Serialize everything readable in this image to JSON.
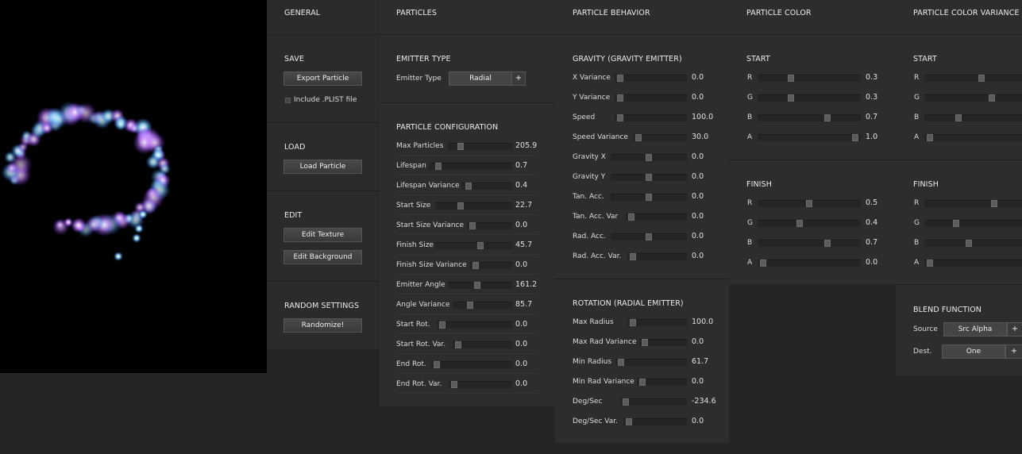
{
  "general": {
    "title": "GENERAL",
    "save": {
      "title": "SAVE",
      "export_label": "Export Particle",
      "include_plist_label": "Include .PLIST file"
    },
    "load": {
      "title": "LOAD",
      "load_label": "Load Particle"
    },
    "edit": {
      "title": "EDIT",
      "edit_texture_label": "Edit Texture",
      "edit_background_label": "Edit Background"
    },
    "random": {
      "title": "RANDOM SETTINGS",
      "randomize_label": "Randomize!"
    }
  },
  "particles": {
    "title": "PARTICLES",
    "emitter": {
      "title": "EMITTER TYPE",
      "label": "Emitter Type",
      "value": "Radial",
      "plus": "+"
    },
    "config": {
      "title": "PARTICLE CONFIGURATION",
      "rows": [
        {
          "label": "Max Particles",
          "value": "205.9",
          "level": 0.14
        },
        {
          "label": "Lifespan",
          "value": "0.7",
          "level": 0.05
        },
        {
          "label": "Lifespan Variance",
          "value": "0.4",
          "level": 0.03
        },
        {
          "label": "Start Size",
          "value": "22.7",
          "level": 0.3
        },
        {
          "label": "Start Size Variance",
          "value": "0.0",
          "level": 0.0
        },
        {
          "label": "Finish Size",
          "value": "45.7",
          "level": 0.6
        },
        {
          "label": "Finish Size Variance",
          "value": "0.0",
          "level": 0.0
        },
        {
          "label": "Emitter Angle",
          "value": "161.2",
          "level": 0.45
        },
        {
          "label": "Angle Variance",
          "value": "85.7",
          "level": 0.24
        },
        {
          "label": "Start Rot.",
          "value": "0.0",
          "level": 0.0
        },
        {
          "label": "Start Rot. Var.",
          "value": "0.0",
          "level": 0.0
        },
        {
          "label": "End Rot.",
          "value": "0.0",
          "level": 0.0
        },
        {
          "label": "End Rot. Var.",
          "value": "0.0",
          "level": 0.0
        }
      ]
    }
  },
  "behavior": {
    "title": "PARTICLE BEHAVIOR",
    "gravity": {
      "title": "GRAVITY (GRAVITY EMITTER)",
      "rows": [
        {
          "label": "X Variance",
          "value": "0.0",
          "level": 0.0
        },
        {
          "label": "Y Variance",
          "value": "0.0",
          "level": 0.0
        },
        {
          "label": "Speed",
          "value": "100.0",
          "level": 0.0
        },
        {
          "label": "Speed Variance",
          "value": "30.0",
          "level": 0.0
        },
        {
          "label": "Gravity X",
          "value": "0.0",
          "level": 0.5
        },
        {
          "label": "Gravity Y",
          "value": "0.0",
          "level": 0.5
        },
        {
          "label": "Tan. Acc.",
          "value": "0.0",
          "level": 0.5
        },
        {
          "label": "Tan. Acc. Var",
          "value": "0.0",
          "level": 0.0
        },
        {
          "label": "Rad. Acc.",
          "value": "0.0",
          "level": 0.5
        },
        {
          "label": "Rad. Acc. Var.",
          "value": "0.0",
          "level": 0.0
        }
      ]
    },
    "rotation": {
      "title": "ROTATION (RADIAL EMITTER)",
      "rows": [
        {
          "label": "Max Radius",
          "value": "100.0",
          "level": 0.0
        },
        {
          "label": "Max Rad Variance",
          "value": "0.0",
          "level": 0.0
        },
        {
          "label": "Min Radius",
          "value": "61.7",
          "level": 0.0
        },
        {
          "label": "Min Rad Variance",
          "value": "0.0",
          "level": 0.0
        },
        {
          "label": "Deg/Sec",
          "value": "-234.6",
          "level": 0.0
        },
        {
          "label": "Deg/Sec Var.",
          "value": "0.0",
          "level": 0.0
        }
      ]
    }
  },
  "color": {
    "title": "PARTICLE COLOR",
    "start": {
      "title": "START",
      "rows": [
        {
          "label": "R",
          "value": "0.3",
          "level": 0.3
        },
        {
          "label": "G",
          "value": "0.3",
          "level": 0.3
        },
        {
          "label": "B",
          "value": "0.7",
          "level": 0.7
        },
        {
          "label": "A",
          "value": "1.0",
          "level": 1.0
        }
      ]
    },
    "finish": {
      "title": "FINISH",
      "rows": [
        {
          "label": "R",
          "value": "0.5",
          "level": 0.5
        },
        {
          "label": "G",
          "value": "0.4",
          "level": 0.4
        },
        {
          "label": "B",
          "value": "0.7",
          "level": 0.7
        },
        {
          "label": "A",
          "value": "0.0",
          "level": 0.0
        }
      ]
    }
  },
  "variance": {
    "title": "PARTICLE COLOR VARIANCE",
    "start": {
      "title": "START",
      "rows": [
        {
          "label": "R",
          "level": 0.5
        },
        {
          "label": "G",
          "level": 0.6
        },
        {
          "label": "B",
          "level": 0.28
        },
        {
          "label": "A",
          "level": 0.0
        }
      ]
    },
    "finish": {
      "title": "FINISH",
      "rows": [
        {
          "label": "R",
          "level": 0.62
        },
        {
          "label": "G",
          "level": 0.25
        },
        {
          "label": "B",
          "level": 0.38
        },
        {
          "label": "A",
          "level": 0.0
        }
      ]
    },
    "blend": {
      "title": "BLEND FUNCTION",
      "source_label": "Source",
      "source_value": "Src Alpha",
      "dest_label": "Dest.",
      "dest_value": "One",
      "plus": "+"
    }
  }
}
